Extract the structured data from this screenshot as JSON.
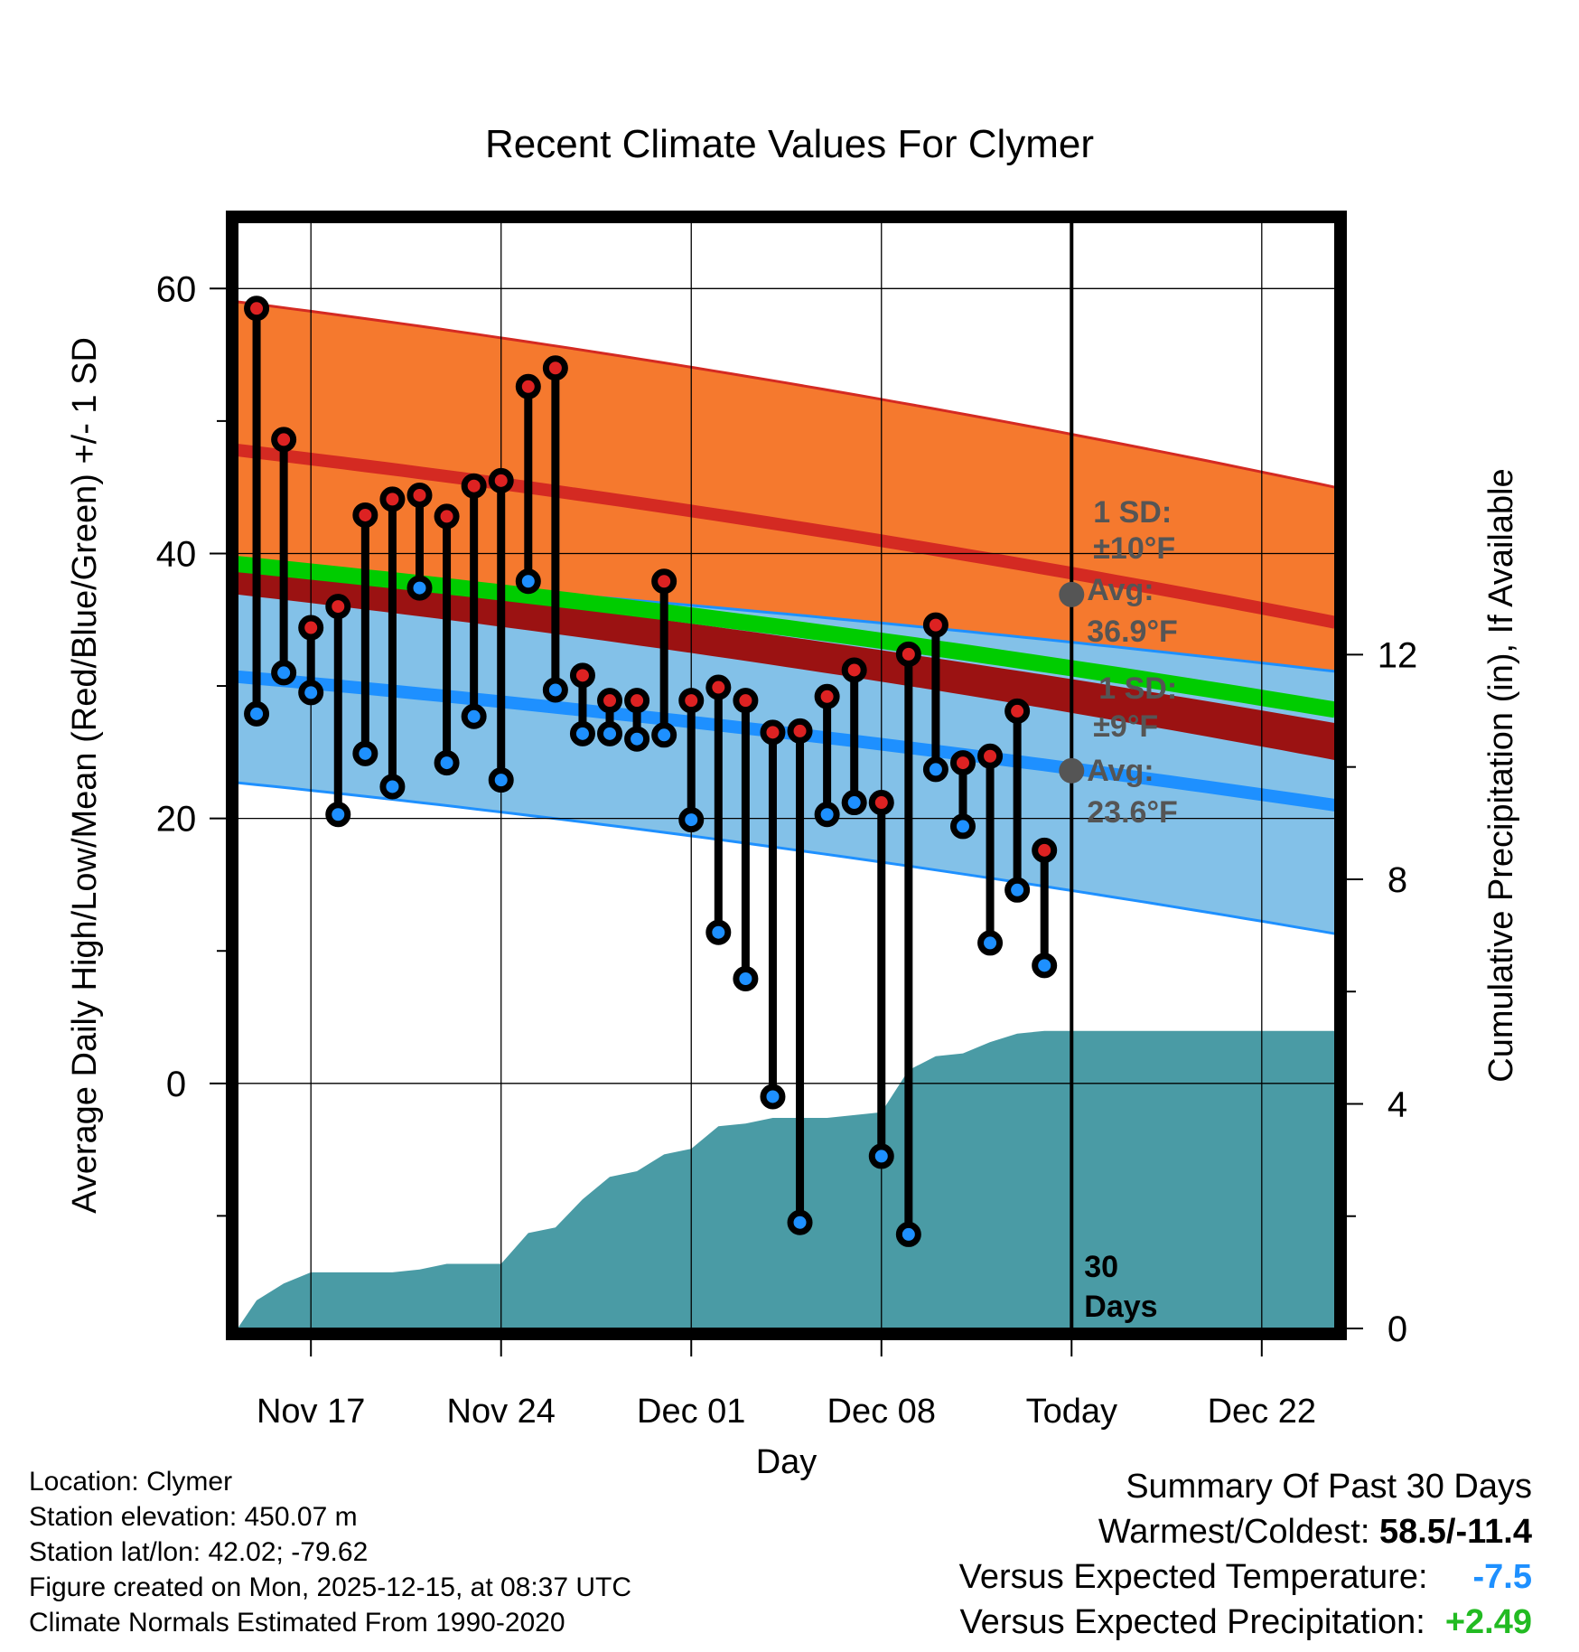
{
  "chart_data": {
    "type": "range",
    "title": "Recent Climate Values For Clymer",
    "xlabel": "Day",
    "ylabel": "Average Daily High/Low/Mean (Red/Blue/Green) +/- 1 SD",
    "y2label": "Cumulative Precipitation (in), If Available",
    "x_tick_labels": [
      "Nov 17",
      "Nov 24",
      "Dec 01",
      "Dec 08",
      "Today",
      "Dec 22"
    ],
    "x_tick_days": [
      17,
      24,
      31,
      38,
      45,
      52
    ],
    "xlim": [
      14.3,
      54.7
    ],
    "today_day": 45,
    "y_ticks": [
      0,
      20,
      40,
      60
    ],
    "ylim": [
      -18.5,
      65
    ],
    "y2_ticks": [
      0,
      4,
      8,
      12
    ],
    "y2lim": [
      0,
      19.7
    ],
    "normals": {
      "high_mean": {
        "start": 47.8,
        "end": 34.8
      },
      "high_upper": {
        "start": 59,
        "end": 45
      },
      "high_lower": {
        "start": 36.9,
        "end": 24.4
      },
      "low_mean": {
        "start": 30.7,
        "end": 21
      },
      "low_upper": {
        "start": 38.8,
        "end": 31.1
      },
      "low_lower": {
        "start": 22.7,
        "end": 11.3
      },
      "mean_mean": {
        "start": 39.2,
        "end": 28.2
      },
      "mean_upper": {
        "start": 38.8,
        "end": 27.2
      },
      "mean_lower": {
        "start": 36.9,
        "end": 24.4
      }
    },
    "annotations": {
      "high_sd_label": "1 SD:",
      "high_sd_value": "±10°F",
      "high_avg_label": "Avg:",
      "high_avg_value": "36.9°F",
      "high_avg": 36.9,
      "low_sd_label": "1 SD:",
      "low_sd_value": "±9°F",
      "low_avg_label": "Avg:",
      "low_avg_value": "23.6°F",
      "low_avg": 23.6,
      "days_number": "30",
      "days_label": "Days"
    },
    "daily": [
      {
        "day": 15,
        "high": 58.5,
        "low": 27.9
      },
      {
        "day": 16,
        "high": 48.6,
        "low": 31.0
      },
      {
        "day": 17,
        "high": 34.4,
        "low": 29.5
      },
      {
        "day": 18,
        "high": 36.0,
        "low": 20.3
      },
      {
        "day": 19,
        "high": 42.9,
        "low": 24.9
      },
      {
        "day": 20,
        "high": 44.1,
        "low": 22.4
      },
      {
        "day": 21,
        "high": 44.4,
        "low": 37.4
      },
      {
        "day": 22,
        "high": 42.8,
        "low": 24.2
      },
      {
        "day": 23,
        "high": 45.1,
        "low": 27.7
      },
      {
        "day": 24,
        "high": 45.5,
        "low": 22.9
      },
      {
        "day": 25,
        "high": 52.6,
        "low": 37.9
      },
      {
        "day": 26,
        "high": 54.0,
        "low": 29.7
      },
      {
        "day": 27,
        "high": 30.8,
        "low": 26.4
      },
      {
        "day": 28,
        "high": 28.9,
        "low": 26.4
      },
      {
        "day": 29,
        "high": 28.9,
        "low": 26.0
      },
      {
        "day": 30,
        "high": 37.9,
        "low": 26.3
      },
      {
        "day": 31,
        "high": 28.9,
        "low": 19.9
      },
      {
        "day": 32,
        "high": 29.9,
        "low": 11.4
      },
      {
        "day": 33,
        "high": 28.9,
        "low": 7.9
      },
      {
        "day": 34,
        "high": 26.5,
        "low": -1.0
      },
      {
        "day": 35,
        "high": 26.6,
        "low": -10.5
      },
      {
        "day": 36,
        "high": 29.2,
        "low": 20.3
      },
      {
        "day": 37,
        "high": 31.2,
        "low": 21.2
      },
      {
        "day": 38,
        "high": 21.2,
        "low": -5.5
      },
      {
        "day": 39,
        "high": 32.4,
        "low": -11.4
      },
      {
        "day": 40,
        "high": 34.6,
        "low": 23.7
      },
      {
        "day": 41,
        "high": 24.2,
        "low": 19.4
      },
      {
        "day": 42,
        "high": 24.7,
        "low": 10.6
      },
      {
        "day": 43,
        "high": 28.1,
        "low": 14.6
      },
      {
        "day": 44,
        "high": 17.6,
        "low": 8.9
      }
    ],
    "precipitation": {
      "days": [
        14.3,
        15,
        16,
        17,
        18,
        19,
        20,
        21,
        22,
        23,
        24,
        25,
        26,
        27,
        28,
        29,
        30,
        31,
        32,
        33,
        34,
        35,
        36,
        37,
        38,
        39,
        40,
        41,
        42,
        43,
        44,
        45,
        54.7
      ],
      "values": [
        0,
        0.5,
        0.8,
        1.0,
        1.0,
        1.0,
        1.0,
        1.05,
        1.15,
        1.15,
        1.15,
        1.7,
        1.8,
        2.3,
        2.7,
        2.8,
        3.1,
        3.2,
        3.6,
        3.65,
        3.75,
        3.75,
        3.75,
        3.8,
        3.85,
        4.6,
        4.85,
        4.9,
        5.1,
        5.25,
        5.3,
        5.3,
        5.3
      ]
    }
  },
  "footer": {
    "location": "Location: Clymer",
    "elevation": "Station elevation: 450.07 m",
    "latlon": "Station lat/lon: 42.02; -79.62",
    "created": "Figure created on Mon, 2025-12-15, at 08:37 UTC",
    "normals": "Climate Normals Estimated From 1990-2020"
  },
  "summary": {
    "title": "Summary Of Past 30 Days",
    "warmest_coldest_label": "Warmest/Coldest:",
    "warmest_coldest_value": "58.5/-11.4",
    "temp_label": "Versus Expected Temperature:",
    "temp_value": "-7.5",
    "precip_label": "Versus Expected Precipitation:",
    "precip_value": "+2.49"
  },
  "colors": {
    "high_band": "#f5792e",
    "high_mean_line": "#d42a22",
    "low_band": "#83c1e8",
    "low_mean_line": "#1e90ff",
    "mean_band": "#9b1212",
    "mean_line": "#00cc00",
    "precip_fill": "#4a9ba5",
    "high_marker": "#dd2222",
    "low_marker": "#1e90ff",
    "annotation": "#555555",
    "temp_value": "#1e90ff",
    "precip_value": "#22bb22"
  }
}
